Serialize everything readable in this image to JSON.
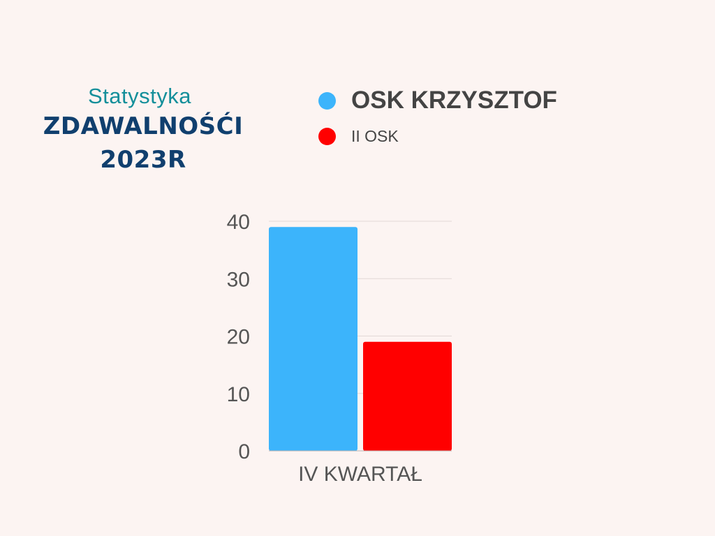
{
  "header": {
    "subtitle": "Statystyka",
    "title_line1": "ZDAWALNOŚĆI",
    "title_line2": "2023R"
  },
  "colors": {
    "background": "#fcf4f2",
    "series0": "#3cb4fb",
    "series1": "#ff0000"
  },
  "chart_data": {
    "type": "bar",
    "categories": [
      "IV KWARTAŁ"
    ],
    "series": [
      {
        "name": "OSK KRZYSZTOF",
        "values": [
          39
        ],
        "color": "#3cb4fb"
      },
      {
        "name": "II OSK",
        "values": [
          19
        ],
        "color": "#ff0000"
      }
    ],
    "yticks": [
      "0",
      "10",
      "20",
      "30",
      "40"
    ],
    "ylim": [
      0,
      40
    ],
    "grid": true,
    "legend": "top"
  }
}
